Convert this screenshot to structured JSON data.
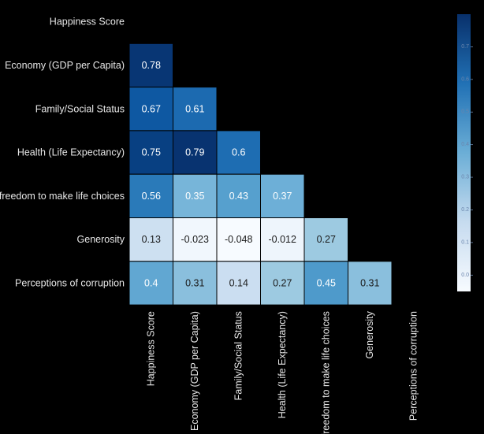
{
  "chart_data": {
    "type": "heatmap",
    "variant": "lower-triangle correlation matrix",
    "row_labels": [
      "Happiness Score",
      "Economy (GDP per Capita)",
      "Family/Social Status",
      "Health (Life Expectancy)",
      "freedom to make life choices",
      "Generosity",
      "Perceptions of corruption"
    ],
    "col_labels": [
      "Happiness Score",
      "Economy (GDP per Capita)",
      "Family/Social Status",
      "Health (Life Expectancy)",
      "freedom to make life choices",
      "Generosity",
      "Perceptions of corruption"
    ],
    "values": [
      [],
      [
        "0.78"
      ],
      [
        "0.67",
        "0.61"
      ],
      [
        "0.75",
        "0.79",
        "0.6"
      ],
      [
        "0.56",
        "0.35",
        "0.43",
        "0.37"
      ],
      [
        "0.13",
        "-0.023",
        "-0.048",
        "-0.012",
        "0.27"
      ],
      [
        "0.4",
        "0.31",
        "0.14",
        "0.27",
        "0.45",
        "0.31"
      ]
    ],
    "colormap": "Blues",
    "color_range": [
      -0.05,
      0.8
    ],
    "colorbar_ticks": [
      "0.7",
      "0.6",
      "0.5",
      "0.4",
      "0.3",
      "0.2",
      "0.1",
      "0.0"
    ],
    "colors": {
      "background": "#000000",
      "low": "#f7fbff",
      "high": "#08306b",
      "cell_border": "#000000"
    }
  }
}
